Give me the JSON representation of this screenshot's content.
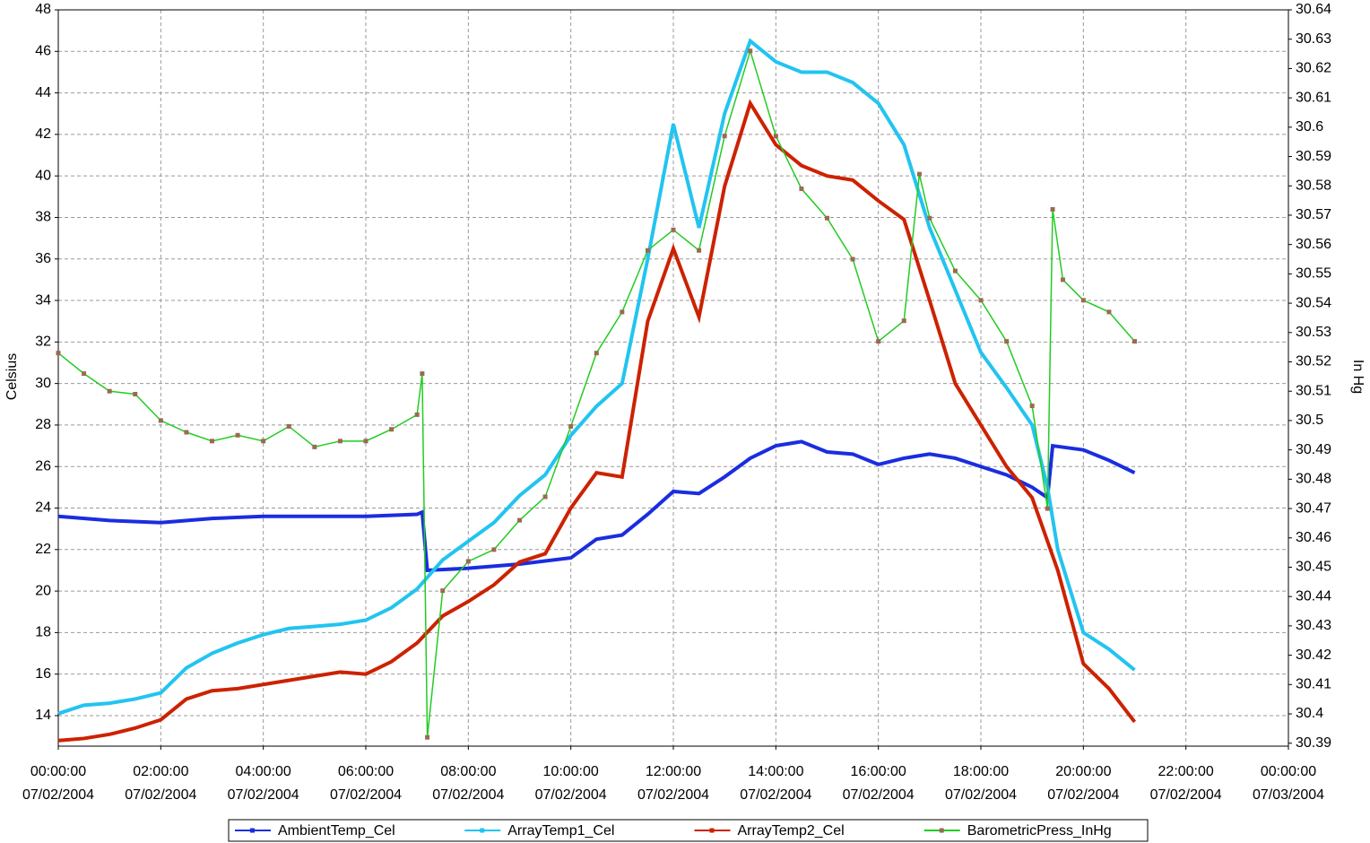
{
  "chart_data": {
    "type": "line",
    "ylabel": "Celsius",
    "y2label": "In Hg",
    "xlim": [
      0,
      24
    ],
    "xticks": [
      {
        "value": 0,
        "label": [
          "00:00:00",
          "07/02/2004"
        ]
      },
      {
        "value": 2,
        "label": [
          "02:00:00",
          "07/02/2004"
        ]
      },
      {
        "value": 4,
        "label": [
          "04:00:00",
          "07/02/2004"
        ]
      },
      {
        "value": 6,
        "label": [
          "06:00:00",
          "07/02/2004"
        ]
      },
      {
        "value": 8,
        "label": [
          "08:00:00",
          "07/02/2004"
        ]
      },
      {
        "value": 10,
        "label": [
          "10:00:00",
          "07/02/2004"
        ]
      },
      {
        "value": 12,
        "label": [
          "12:00:00",
          "07/02/2004"
        ]
      },
      {
        "value": 14,
        "label": [
          "14:00:00",
          "07/02/2004"
        ]
      },
      {
        "value": 16,
        "label": [
          "16:00:00",
          "07/02/2004"
        ]
      },
      {
        "value": 18,
        "label": [
          "18:00:00",
          "07/02/2004"
        ]
      },
      {
        "value": 20,
        "label": [
          "20:00:00",
          "07/02/2004"
        ]
      },
      {
        "value": 22,
        "label": [
          "22:00:00",
          "07/02/2004"
        ]
      },
      {
        "value": 24,
        "label": [
          "00:00:00",
          "07/03/2004"
        ]
      }
    ],
    "ylim": [
      12.53,
      48
    ],
    "yticks": [
      14,
      16,
      18,
      20,
      22,
      24,
      26,
      28,
      30,
      32,
      34,
      36,
      38,
      40,
      42,
      44,
      46,
      48
    ],
    "y2lim": [
      30.389,
      30.64
    ],
    "y2ticks": [
      30.39,
      30.4,
      30.41,
      30.42,
      30.43,
      30.44,
      30.45,
      30.46,
      30.47,
      30.48,
      30.49,
      30.5,
      30.51,
      30.52,
      30.53,
      30.54,
      30.55,
      30.56,
      30.57,
      30.58,
      30.59,
      30.6,
      30.61,
      30.62,
      30.63,
      30.64
    ],
    "grid": true,
    "legend": "bottom",
    "series": [
      {
        "name": "AmbientTemp_Cel",
        "color": "#1a2de0",
        "x": [
          0,
          1,
          2,
          3,
          4,
          5,
          6,
          7,
          7.1,
          7.2,
          8,
          9,
          10,
          10.5,
          11,
          11.5,
          12,
          12.5,
          13,
          13.5,
          14,
          14.5,
          15,
          15.5,
          16,
          16.5,
          17,
          17.5,
          18,
          18.5,
          19,
          19.3,
          19.4,
          20,
          20.5,
          21
        ],
        "values": [
          23.6,
          23.4,
          23.3,
          23.5,
          23.6,
          23.6,
          23.6,
          23.7,
          23.8,
          21,
          21.1,
          21.3,
          21.6,
          22.5,
          22.7,
          23.7,
          24.8,
          24.7,
          25.5,
          26.4,
          27,
          27.2,
          26.7,
          26.6,
          26.1,
          26.4,
          26.6,
          26.4,
          26,
          25.6,
          25,
          24.5,
          27,
          26.8,
          26.3,
          25.7
        ]
      },
      {
        "name": "ArrayTemp1_Cel",
        "color": "#22c4f0",
        "x": [
          0,
          0.5,
          1,
          1.5,
          2,
          2.5,
          3,
          3.5,
          4,
          4.5,
          5,
          5.5,
          6,
          6.5,
          7,
          7.5,
          8,
          8.5,
          9,
          9.5,
          10,
          10.5,
          11,
          11.5,
          12,
          12.5,
          13,
          13.5,
          14,
          14.5,
          15,
          15.5,
          16,
          16.5,
          17,
          17.5,
          18,
          18.5,
          19,
          19.3,
          19.5,
          20,
          20.5,
          21
        ],
        "values": [
          14.1,
          14.5,
          14.6,
          14.8,
          15.1,
          16.3,
          17,
          17.5,
          17.9,
          18.2,
          18.3,
          18.4,
          18.6,
          19.2,
          20.1,
          21.5,
          22.4,
          23.3,
          24.6,
          25.6,
          27.5,
          28.9,
          30,
          36,
          42.5,
          37.5,
          43,
          46.5,
          45.5,
          45,
          45,
          44.5,
          43.5,
          41.5,
          37.5,
          34.5,
          31.5,
          29.8,
          28,
          25,
          22,
          18,
          17.2,
          16.2
        ]
      },
      {
        "name": "ArrayTemp2_Cel",
        "color": "#cc2200",
        "x": [
          0,
          0.5,
          1,
          1.5,
          2,
          2.5,
          3,
          3.5,
          4,
          4.5,
          5,
          5.5,
          6,
          6.5,
          7,
          7.5,
          8,
          8.5,
          9,
          9.5,
          10,
          10.5,
          11,
          11.5,
          12,
          12.5,
          13,
          13.5,
          14,
          14.5,
          15,
          15.5,
          16,
          16.5,
          17,
          17.5,
          18,
          18.5,
          19,
          19.5,
          20,
          20.5,
          21
        ],
        "values": [
          12.8,
          12.9,
          13.1,
          13.4,
          13.8,
          14.8,
          15.2,
          15.3,
          15.5,
          15.7,
          15.9,
          16.1,
          16,
          16.6,
          17.5,
          18.8,
          19.5,
          20.3,
          21.4,
          21.8,
          24,
          25.7,
          25.5,
          33,
          36.5,
          33.2,
          39.5,
          43.5,
          41.5,
          40.5,
          40,
          39.8,
          38.8,
          37.9,
          34,
          30,
          28,
          26,
          24.5,
          21,
          16.5,
          15.3,
          13.7
        ]
      },
      {
        "name": "BarometricPress_InHg",
        "color": "#22cc22",
        "marker_color": "#9a6a50",
        "axis": "y2",
        "x": [
          0,
          0.5,
          1,
          1.5,
          2,
          2.5,
          3,
          3.5,
          4,
          4.5,
          5,
          5.5,
          6,
          6.5,
          7,
          7.1,
          7.2,
          7.5,
          8,
          8.5,
          9,
          9.5,
          10,
          10.5,
          11,
          11.5,
          12,
          12.5,
          13,
          13.5,
          14,
          14.5,
          15,
          15.5,
          16,
          16.5,
          16.8,
          17,
          17.5,
          18,
          18.5,
          19,
          19.3,
          19.4,
          19.6,
          20,
          20.5,
          21
        ],
        "values": [
          30.523,
          30.516,
          30.51,
          30.509,
          30.5,
          30.496,
          30.493,
          30.495,
          30.493,
          30.498,
          30.491,
          30.493,
          30.493,
          30.497,
          30.502,
          30.516,
          30.392,
          30.442,
          30.452,
          30.456,
          30.466,
          30.474,
          30.498,
          30.523,
          30.537,
          30.558,
          30.565,
          30.558,
          30.597,
          30.626,
          30.597,
          30.579,
          30.569,
          30.555,
          30.527,
          30.534,
          30.584,
          30.569,
          30.551,
          30.541,
          30.527,
          30.505,
          30.47,
          30.572,
          30.548,
          30.541,
          30.537,
          30.527
        ]
      }
    ]
  }
}
